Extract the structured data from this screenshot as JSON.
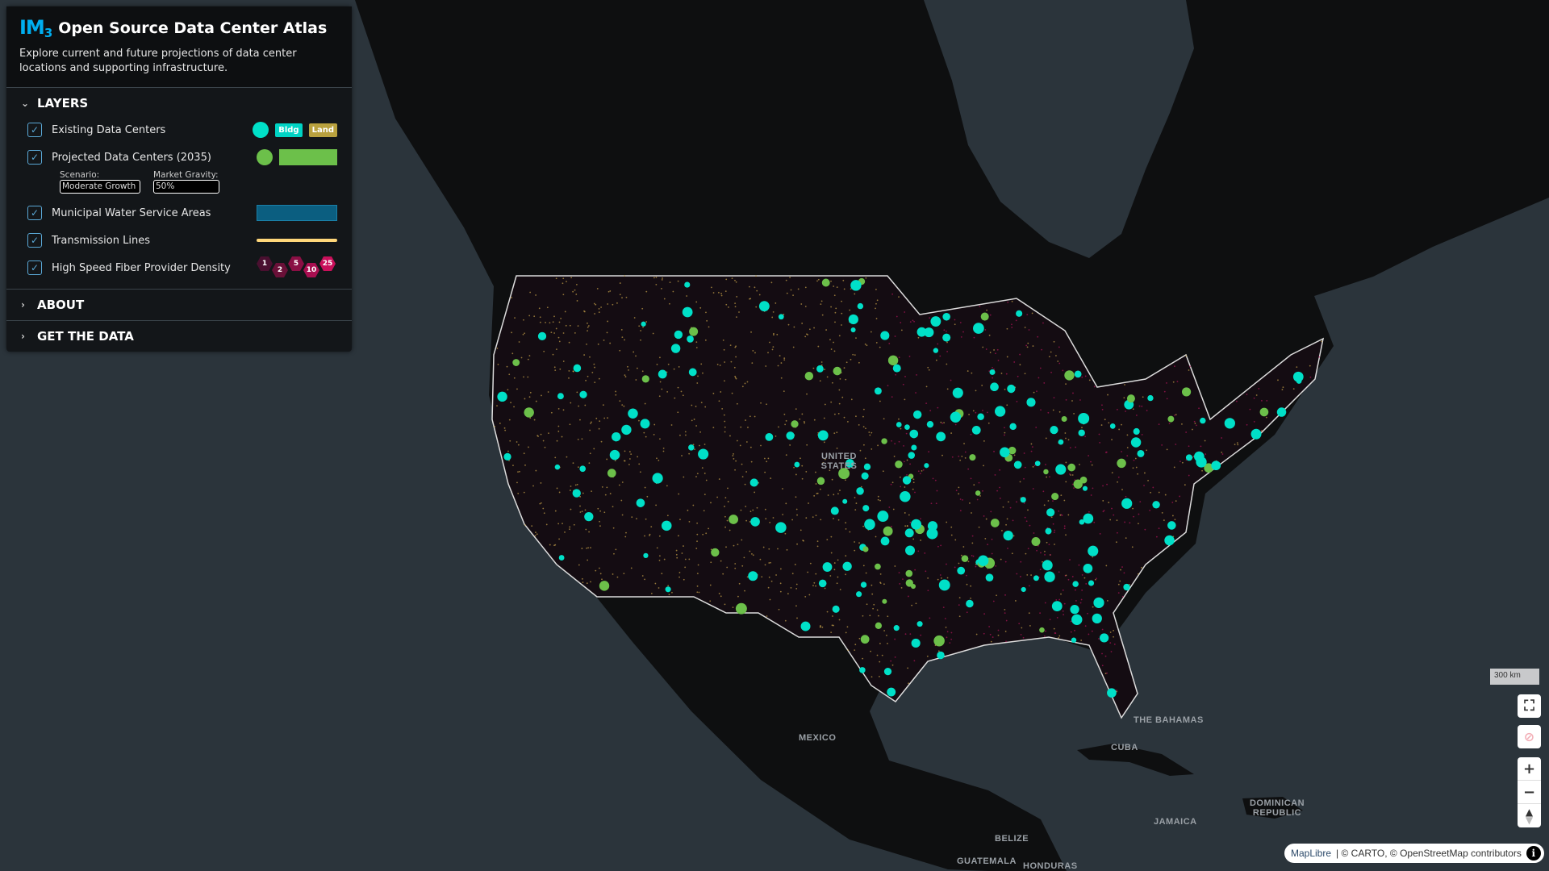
{
  "app": {
    "logo": "IM",
    "logo_sub": "3",
    "title": "Open Source Data Center Atlas",
    "description": "Explore current and future projections of data center locations and supporting infrastructure."
  },
  "layers_section": {
    "label": "LAYERS",
    "items": [
      {
        "label": "Existing Data Centers",
        "checked": true,
        "legend": {
          "dot_color": "#00e0c8",
          "tags": [
            {
              "label": "Bldg",
              "color": "#00d3c4"
            },
            {
              "label": "Land",
              "color": "#b9a13e"
            }
          ]
        }
      },
      {
        "label": "Projected Data Centers (2035)",
        "checked": true,
        "legend": {
          "dot_color": "#6cc04a",
          "bar_color": "#6cc04a"
        }
      },
      {
        "label": "Municipal Water Service Areas",
        "checked": true,
        "legend": {
          "bar_color": "#0b5e80"
        }
      },
      {
        "label": "Transmission Lines",
        "checked": true,
        "legend": {
          "line_color": "#ffd77a"
        }
      },
      {
        "label": "High Speed Fiber Provider Density",
        "checked": true,
        "legend": {
          "bins": [
            {
              "label": "1",
              "color": "#4a1030"
            },
            {
              "label": "2",
              "color": "#6a1038"
            },
            {
              "label": "5",
              "color": "#8a0f44"
            },
            {
              "label": "10",
              "color": "#a80e50"
            },
            {
              "label": "25",
              "color": "#c8105a"
            }
          ]
        }
      }
    ],
    "scenario": {
      "label": "Scenario:",
      "value": "Moderate Growth"
    },
    "market_gravity": {
      "label": "Market Gravity:",
      "value": "50%"
    }
  },
  "about_section": {
    "label": "ABOUT"
  },
  "data_section": {
    "label": "GET THE DATA"
  },
  "map": {
    "labels": {
      "us": "UNITED STATES",
      "mexico": "MEXICO",
      "cuba": "CUBA",
      "bahamas": "THE BAHAMAS",
      "jamaica": "JAMAICA",
      "dominican": "DOMINICAN REPUBLIC",
      "belize": "BELIZE",
      "guatemala": "GUATEMALA",
      "honduras": "HONDURAS"
    },
    "scale": "300 km",
    "controls": {
      "fullscreen": "fullscreen-icon",
      "geolocate": "geolocate-icon",
      "zoom_in": "+",
      "zoom_out": "−",
      "compass": "compass-icon"
    },
    "attribution": {
      "maplibre": "MapLibre",
      "rest": "| © CARTO, © OpenStreetMap contributors",
      "info": "i"
    },
    "colors": {
      "ocean": "#2b343b",
      "land": "#0e0f10",
      "existing": "#00e0c8",
      "projected": "#6cc04a"
    }
  }
}
